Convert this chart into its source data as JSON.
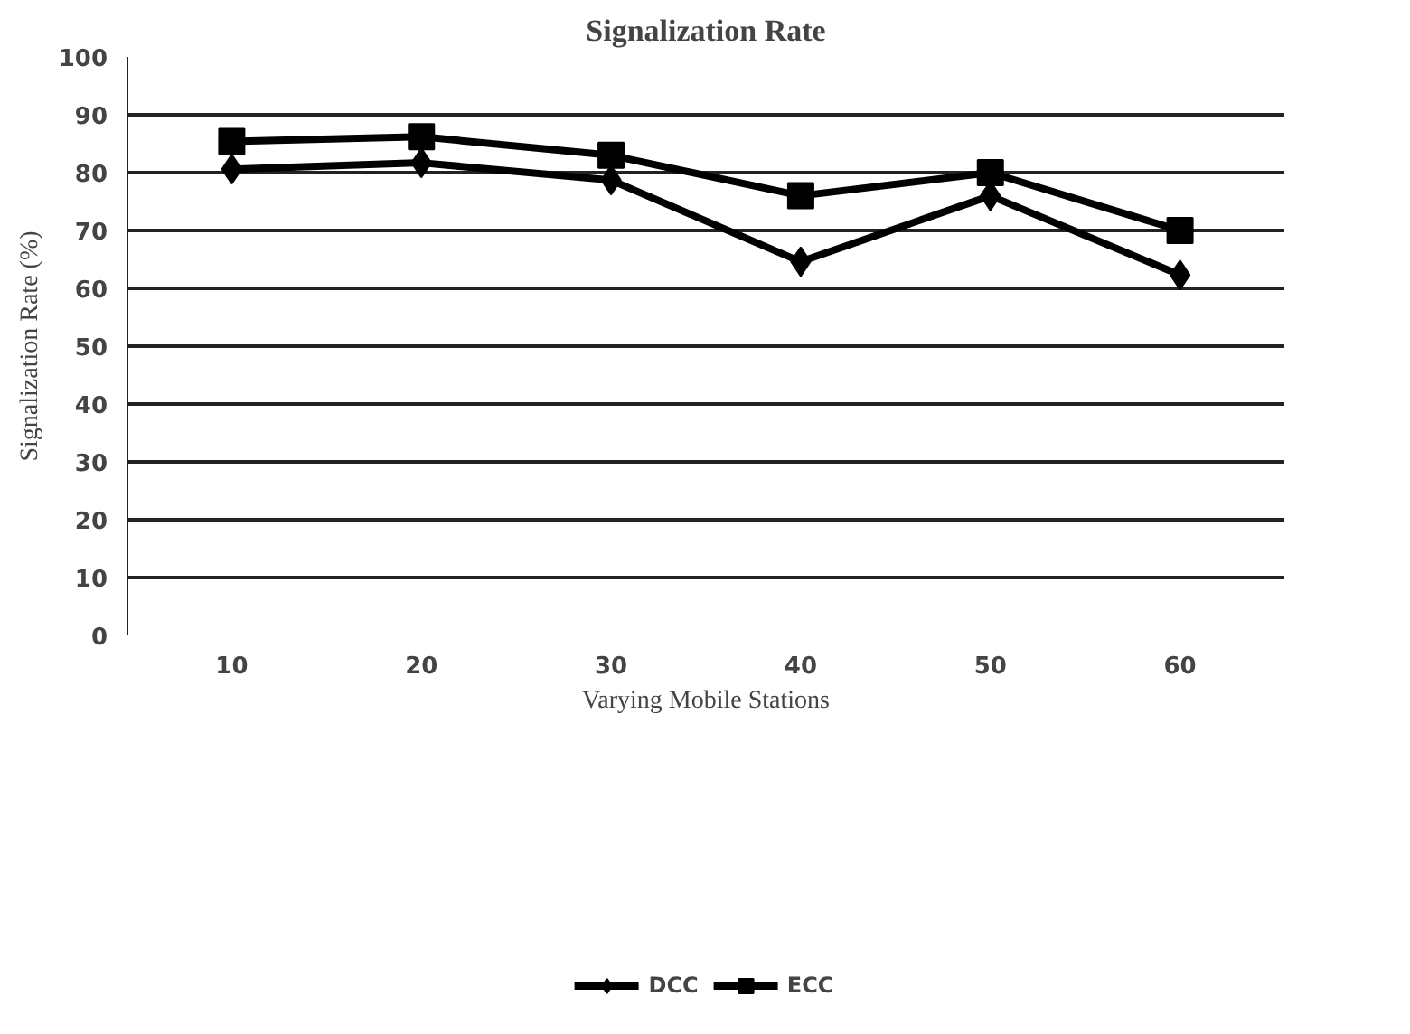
{
  "chart_data": {
    "type": "line",
    "title": "Signalization Rate",
    "xlabel": "Varying Mobile Stations",
    "ylabel": "Signalization Rate (%)",
    "categories": [
      "10",
      "20",
      "30",
      "40",
      "50",
      "60"
    ],
    "series": [
      {
        "name": "DCC",
        "color": "#000000",
        "marker": "diamond",
        "values": [
          80.6,
          81.7,
          78.7,
          64.6,
          76,
          62.3
        ]
      },
      {
        "name": "ECC",
        "color": "#000000",
        "marker": "square",
        "values": [
          85.4,
          86.2,
          83,
          76,
          80,
          70
        ]
      }
    ],
    "ylim": [
      0,
      100
    ],
    "yticks": [
      0,
      10,
      20,
      30,
      40,
      50,
      60,
      70,
      80,
      90,
      100
    ],
    "grid": "y",
    "legend": "bottom",
    "line_style": "solid"
  }
}
